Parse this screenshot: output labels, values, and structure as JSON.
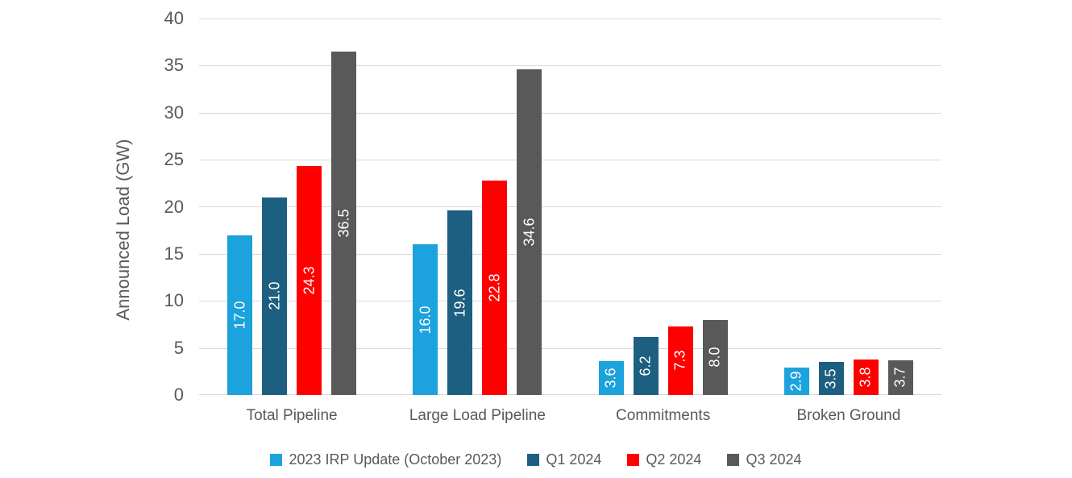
{
  "chart_data": {
    "type": "bar",
    "title": "",
    "xlabel": "",
    "ylabel": "Announced Load (GW)",
    "ylim": [
      0,
      40
    ],
    "yticks": [
      0,
      5,
      10,
      15,
      20,
      25,
      30,
      35,
      40
    ],
    "grid": true,
    "legend_position": "bottom-center",
    "categories": [
      "Total Pipeline",
      "Large Load Pipeline",
      "Commitments",
      "Broken Ground"
    ],
    "series": [
      {
        "name": "2023 IRP Update (October 2023)",
        "color": "#1CA2DC",
        "values": [
          17.0,
          16.0,
          3.6,
          2.9
        ],
        "labels": [
          "17.0",
          "16.0",
          "3.6",
          "2.9"
        ]
      },
      {
        "name": "Q1 2024",
        "color": "#1D5F80",
        "values": [
          21.0,
          19.6,
          6.2,
          3.5
        ],
        "labels": [
          "21.0",
          "19.6",
          "6.2",
          "3.5"
        ]
      },
      {
        "name": "Q2 2024",
        "color": "#FF0000",
        "values": [
          24.3,
          22.8,
          7.3,
          3.8
        ],
        "labels": [
          "24.3",
          "22.8",
          "7.3",
          "3.8"
        ]
      },
      {
        "name": "Q3 2024",
        "color": "#595959",
        "values": [
          36.5,
          34.6,
          8.0,
          3.7
        ],
        "labels": [
          "36.5",
          "34.6",
          "8.0",
          "3.7"
        ]
      }
    ],
    "value_label_style": {
      "color": "#FFFFFF",
      "rotation_deg": -90,
      "position": "center-inside"
    }
  },
  "colors": {
    "background": "#FFFFFF",
    "gridline": "#D9D9D9",
    "axis_text": "#595959"
  }
}
